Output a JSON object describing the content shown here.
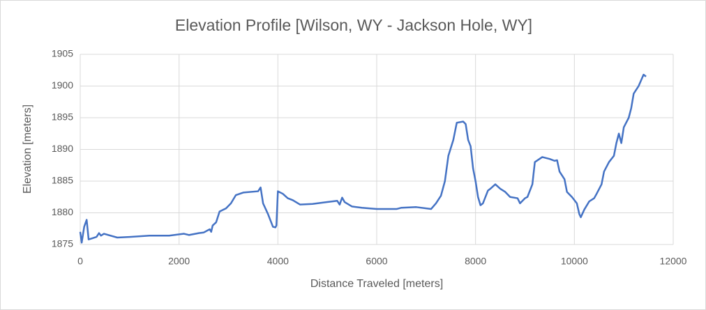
{
  "chart_data": {
    "type": "line",
    "title": "Elevation Profile [Wilson, WY - Jackson Hole, WY]",
    "x_label": "Distance Traveled [meters]",
    "y_label": "Elevation [meters]",
    "xlim": [
      0,
      12000
    ],
    "xticks": [
      0,
      2000,
      4000,
      6000,
      8000,
      10000,
      12000
    ],
    "ylim": [
      1875,
      1905
    ],
    "yticks": [
      1875,
      1880,
      1885,
      1890,
      1895,
      1900,
      1905
    ],
    "grid": true,
    "series": [
      {
        "color": "#4472c4",
        "x": [
          0,
          30,
          80,
          130,
          170,
          250,
          330,
          380,
          420,
          480,
          750,
          1000,
          1400,
          1800,
          2100,
          2200,
          2400,
          2500,
          2620,
          2650,
          2680,
          2750,
          2820,
          2950,
          3050,
          3150,
          3300,
          3600,
          3650,
          3700,
          3800,
          3900,
          3950,
          3970,
          4000,
          4100,
          4200,
          4300,
          4450,
          4700,
          5000,
          5200,
          5250,
          5300,
          5350,
          5500,
          5700,
          6000,
          6400,
          6500,
          6800,
          7100,
          7200,
          7300,
          7380,
          7450,
          7550,
          7620,
          7750,
          7800,
          7850,
          7900,
          7950,
          8000,
          8050,
          8100,
          8150,
          8250,
          8300,
          8400,
          8500,
          8600,
          8700,
          8850,
          8900,
          9000,
          9050,
          9150,
          9200,
          9350,
          9500,
          9600,
          9650,
          9700,
          9800,
          9850,
          9950,
          10050,
          10100,
          10130,
          10200,
          10300,
          10400,
          10450,
          10550,
          10600,
          10700,
          10800,
          10850,
          10900,
          10950,
          11000,
          11100,
          11150,
          11200,
          11300,
          11400,
          11450
        ],
        "values": [
          1877.0,
          1875.3,
          1877.8,
          1878.9,
          1875.8,
          1876.0,
          1876.2,
          1876.8,
          1876.4,
          1876.7,
          1876.1,
          1876.2,
          1876.4,
          1876.4,
          1876.7,
          1876.5,
          1876.8,
          1876.9,
          1877.4,
          1877.0,
          1878.0,
          1878.5,
          1880.2,
          1880.7,
          1881.5,
          1882.8,
          1883.2,
          1883.4,
          1884.0,
          1881.5,
          1879.8,
          1877.8,
          1877.7,
          1878.0,
          1883.4,
          1883.0,
          1882.3,
          1882.0,
          1881.3,
          1881.4,
          1881.7,
          1881.9,
          1881.3,
          1882.4,
          1881.7,
          1881.0,
          1880.8,
          1880.6,
          1880.6,
          1880.8,
          1880.9,
          1880.6,
          1881.5,
          1882.7,
          1885.0,
          1889.0,
          1891.5,
          1894.2,
          1894.4,
          1894.0,
          1891.5,
          1890.5,
          1887.0,
          1885.0,
          1882.5,
          1881.2,
          1881.5,
          1883.5,
          1883.8,
          1884.5,
          1883.8,
          1883.3,
          1882.5,
          1882.3,
          1881.5,
          1882.3,
          1882.5,
          1884.5,
          1888.0,
          1888.8,
          1888.5,
          1888.2,
          1888.3,
          1886.5,
          1885.3,
          1883.3,
          1882.5,
          1881.5,
          1879.8,
          1879.3,
          1880.5,
          1881.8,
          1882.3,
          1883.0,
          1884.5,
          1886.5,
          1888.0,
          1889.0,
          1891.0,
          1892.5,
          1891.0,
          1893.5,
          1895.0,
          1896.5,
          1898.8,
          1900.0,
          1901.8,
          1901.5
        ]
      }
    ]
  }
}
